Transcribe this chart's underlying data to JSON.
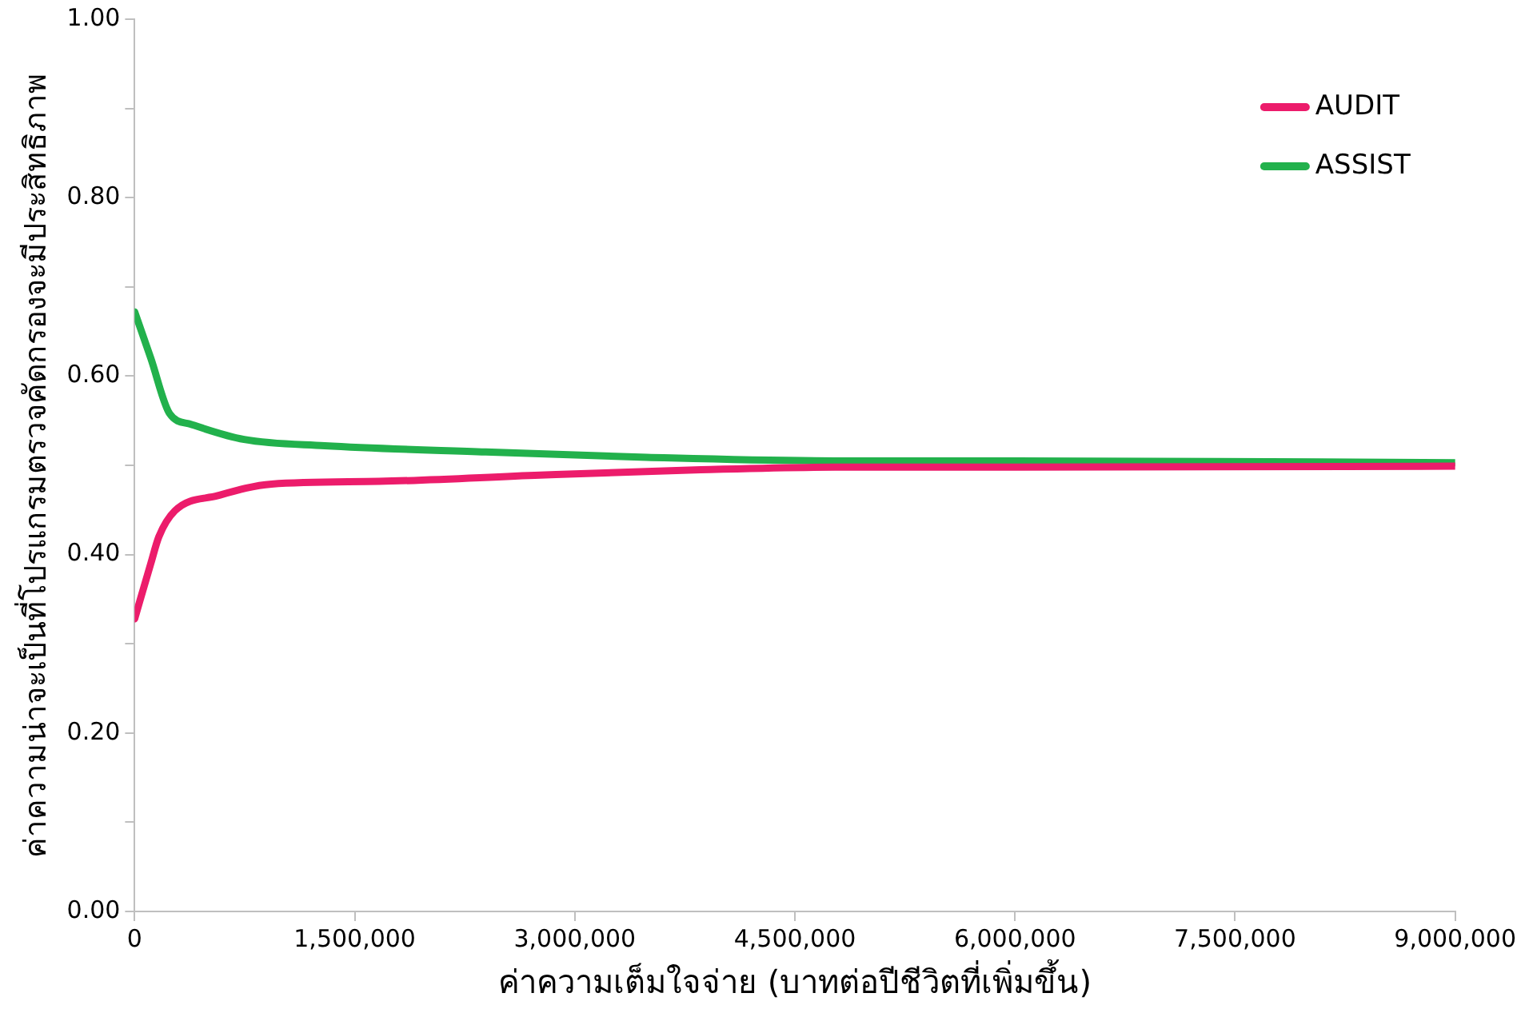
{
  "chart_data": {
    "type": "line",
    "xlabel": "ค่าความเต็มใจจ่าย (บาทต่อปีชีวิตที่เพิ่มขึ้น)",
    "ylabel": "ค่าความน่าจะเป็นที่โปรแกรมตรวจคัดกรองจะมีประสิทธิภาพ",
    "series": [
      {
        "name": "AUDIT",
        "color": "#ec1c6b",
        "x": [
          0,
          110000,
          165000,
          274000,
          567000,
          933000,
          1665000,
          2763000,
          3860000,
          4774000,
          6000000,
          9000000
        ],
        "values": [
          0.328,
          0.39,
          0.42,
          0.449,
          0.466,
          0.479,
          0.482,
          0.489,
          0.495,
          0.498,
          0.498,
          0.499
        ]
      },
      {
        "name": "ASSIST",
        "color": "#22b14c",
        "x": [
          0,
          110000,
          238000,
          384000,
          746000,
          1295000,
          2393000,
          3490000,
          4774000,
          6000000,
          9000000
        ],
        "values": [
          0.672,
          0.62,
          0.558,
          0.546,
          0.529,
          0.522,
          0.515,
          0.509,
          0.505,
          0.505,
          0.503
        ]
      }
    ],
    "xlim": [
      0,
      9000000
    ],
    "xticks": [
      {
        "value": 0,
        "label": "0"
      },
      {
        "value": 1500000,
        "label": "1,500,000"
      },
      {
        "value": 3000000,
        "label": "3,000,000"
      },
      {
        "value": 4500000,
        "label": "4,500,000"
      },
      {
        "value": 6000000,
        "label": "6,000,000"
      },
      {
        "value": 7500000,
        "label": "7,500,000"
      },
      {
        "value": 9000000,
        "label": "9,000,000"
      }
    ],
    "ylim": [
      0,
      1
    ],
    "yticks": [
      {
        "value": 0,
        "label": "0.00"
      },
      {
        "value": 0.1,
        "label": null
      },
      {
        "value": 0.2,
        "label": "0.20"
      },
      {
        "value": 0.3,
        "label": null
      },
      {
        "value": 0.4,
        "label": "0.40"
      },
      {
        "value": 0.5,
        "label": null
      },
      {
        "value": 0.6,
        "label": "0.60"
      },
      {
        "value": 0.7,
        "label": null
      },
      {
        "value": 0.8,
        "label": "0.80"
      },
      {
        "value": 0.9,
        "label": null
      },
      {
        "value": 1,
        "label": "1.00"
      }
    ],
    "grid": false,
    "legend": "top right",
    "marker": "none",
    "line_style": "solid"
  }
}
